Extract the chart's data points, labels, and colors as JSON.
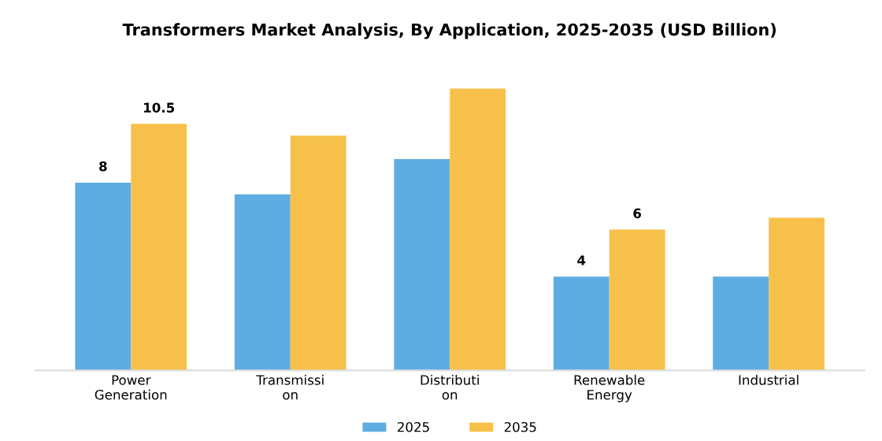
{
  "chart_data": {
    "type": "bar",
    "title": "Transformers Market Analysis, By Application, 2025-2035 (USD Billion)",
    "categories": [
      "Power\nGeneration",
      "Transmissi\non",
      "Distributi\non",
      "Renewable\nEnergy",
      "Industrial"
    ],
    "series": [
      {
        "name": "2025",
        "color": "#5dade2",
        "values": [
          8,
          7.5,
          9,
          4,
          4
        ],
        "value_labels": [
          "8",
          null,
          null,
          "4",
          null
        ]
      },
      {
        "name": "2035",
        "color": "#f7c04a",
        "values": [
          10.5,
          10,
          12,
          6,
          6.5
        ],
        "value_labels": [
          "10.5",
          null,
          null,
          "6",
          null
        ]
      }
    ],
    "legend": "bottom",
    "grid": false
  }
}
